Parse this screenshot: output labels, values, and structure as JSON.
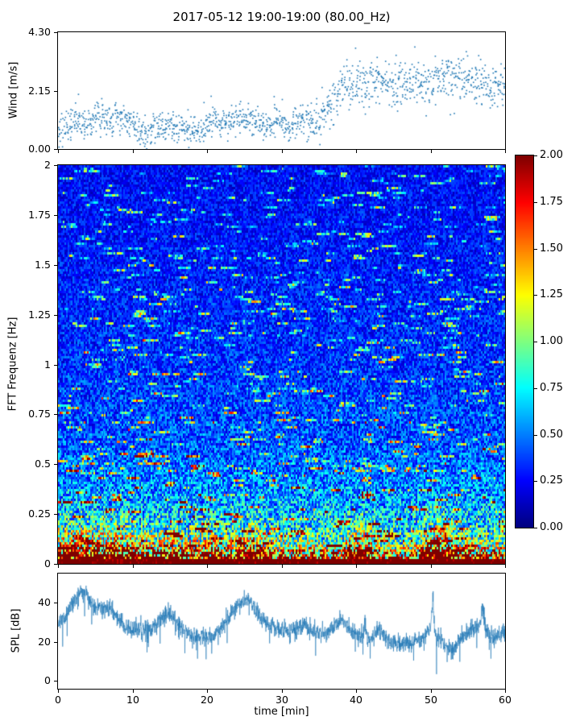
{
  "title": "2017-05-12 19:00-19:00 (80.00_Hz)",
  "axes": {
    "wind": {
      "ylabel": "Wind [m/s]",
      "ytick_labels": [
        "0.00",
        "2.15",
        "4.30"
      ],
      "ytick_values": [
        0,
        2.15,
        4.3
      ],
      "ylim": [
        0,
        4.3
      ]
    },
    "spectrogram": {
      "ylabel": "FFT Frequenz [Hz]",
      "ytick_labels": [
        "0",
        "0.25",
        "0.5",
        "0.75",
        "1",
        "1.25",
        "1.5",
        "1.75",
        "2"
      ],
      "ytick_values": [
        0,
        0.25,
        0.5,
        0.75,
        1,
        1.25,
        1.5,
        1.75,
        2
      ],
      "ylim": [
        0,
        2
      ]
    },
    "spl": {
      "ylabel": "SPL [dB]",
      "ytick_labels": [
        "0",
        "20",
        "40"
      ],
      "ytick_values": [
        0,
        20,
        40
      ],
      "ylim": [
        -4,
        55
      ]
    },
    "x": {
      "label": "time [min]",
      "tick_labels": [
        "0",
        "10",
        "20",
        "30",
        "40",
        "50",
        "60"
      ],
      "tick_values": [
        0,
        10,
        20,
        30,
        40,
        50,
        60
      ],
      "lim": [
        0,
        60
      ]
    }
  },
  "colorbar": {
    "tick_labels": [
      "0.00",
      "0.25",
      "0.50",
      "0.75",
      "1.00",
      "1.25",
      "1.50",
      "1.75",
      "2.00"
    ],
    "tick_values": [
      0,
      0.25,
      0.5,
      0.75,
      1,
      1.25,
      1.5,
      1.75,
      2
    ],
    "vmin": 0,
    "vmax": 2,
    "colormap": "jet"
  },
  "chart_data": [
    {
      "type": "scatter",
      "name": "wind-speed",
      "ylabel": "Wind [m/s]",
      "xlim": [
        0,
        60
      ],
      "ylim": [
        0,
        4.3
      ],
      "yticks": [
        0,
        2.15,
        4.3
      ],
      "marker_color": "#1f77b4",
      "n_points": 1400,
      "noise_sd": 0.3,
      "noise_sd_after_min36": 0.42,
      "per_minute_mean": [
        0.7,
        0.9,
        1.0,
        1.1,
        0.9,
        1.3,
        1.2,
        1.0,
        1.3,
        1.2,
        0.8,
        0.6,
        0.7,
        0.8,
        0.9,
        0.8,
        0.7,
        0.8,
        0.7,
        0.8,
        0.9,
        1.0,
        1.1,
        1.0,
        1.2,
        1.1,
        1.2,
        1.0,
        0.9,
        1.0,
        1.1,
        0.9,
        1.0,
        1.1,
        1.0,
        1.2,
        1.5,
        1.8,
        2.2,
        2.3,
        2.4,
        2.3,
        2.5,
        2.4,
        2.5,
        2.3,
        2.4,
        2.5,
        2.6,
        2.4,
        2.5,
        2.6,
        2.5,
        2.7,
        2.8,
        2.6,
        2.5,
        2.4,
        2.3,
        2.5,
        2.4
      ]
    },
    {
      "type": "heatmap",
      "name": "fft-spectrogram",
      "ylabel": "FFT Frequenz [Hz]",
      "xlim": [
        0,
        60
      ],
      "ylim": [
        0,
        2
      ],
      "value_range": [
        0,
        2
      ],
      "colormap": "jet",
      "freq_profile_step_hz": 0.1,
      "freq_profile": [
        2.3,
        1.1,
        0.75,
        0.6,
        0.52,
        0.46,
        0.42,
        0.4,
        0.38,
        0.36,
        0.34,
        0.33,
        0.32,
        0.31,
        0.3,
        0.29,
        0.28,
        0.27,
        0.27,
        0.26,
        0.26
      ],
      "low_freq_boost_per_min": [
        1.3,
        1.3,
        1.35,
        1.3,
        1.3,
        1.35,
        1.3,
        1.3,
        1.35,
        1.3,
        1.1,
        1.0,
        1.05,
        1.0,
        1.1,
        1.15,
        1.1,
        1.0,
        1.0,
        1.05,
        1.0,
        1.1,
        1.05,
        1.0,
        1.3,
        1.4,
        1.35,
        1.2,
        1.0,
        0.9,
        0.8,
        0.8,
        0.85,
        0.8,
        0.8,
        0.8,
        0.8,
        0.85,
        0.8,
        1.2,
        1.3,
        1.3,
        1.25,
        0.8,
        0.75,
        0.75,
        0.7,
        0.75,
        0.8,
        1.4,
        1.6,
        1.6,
        1.5,
        1.3,
        0.9,
        0.9,
        0.95,
        0.9,
        0.85,
        0.9,
        0.9
      ],
      "colorbar_ticks": [
        0,
        0.25,
        0.5,
        0.75,
        1,
        1.25,
        1.5,
        1.75,
        2
      ]
    },
    {
      "type": "line",
      "name": "spl",
      "ylabel": "SPL [dB]",
      "xlabel": "time [min]",
      "xlim": [
        0,
        60
      ],
      "ylim": [
        -4,
        55
      ],
      "yticks": [
        0,
        20,
        40
      ],
      "xticks": [
        0,
        10,
        20,
        30,
        40,
        50,
        60
      ],
      "line_color": "#1f77b4",
      "noise_sd": 2.3,
      "spikes": [
        {
          "t": 41.2,
          "height": 10,
          "width": 0.3
        },
        {
          "t": 50.3,
          "height": 16,
          "width": 0.3
        },
        {
          "t": 57.0,
          "height": 8,
          "width": 0.3
        }
      ],
      "per_minute_mean": [
        30,
        33,
        40,
        45,
        43,
        38,
        36,
        38,
        33,
        28,
        26,
        27,
        25,
        28,
        33,
        35,
        30,
        26,
        23,
        22,
        22,
        24,
        28,
        32,
        38,
        42,
        40,
        33,
        29,
        27,
        26,
        25,
        27,
        29,
        26,
        25,
        24,
        28,
        32,
        27,
        24,
        22,
        21,
        26,
        22,
        20,
        19,
        19,
        20,
        22,
        28,
        22,
        18,
        15,
        22,
        25,
        27,
        30,
        22,
        23,
        25
      ]
    }
  ]
}
